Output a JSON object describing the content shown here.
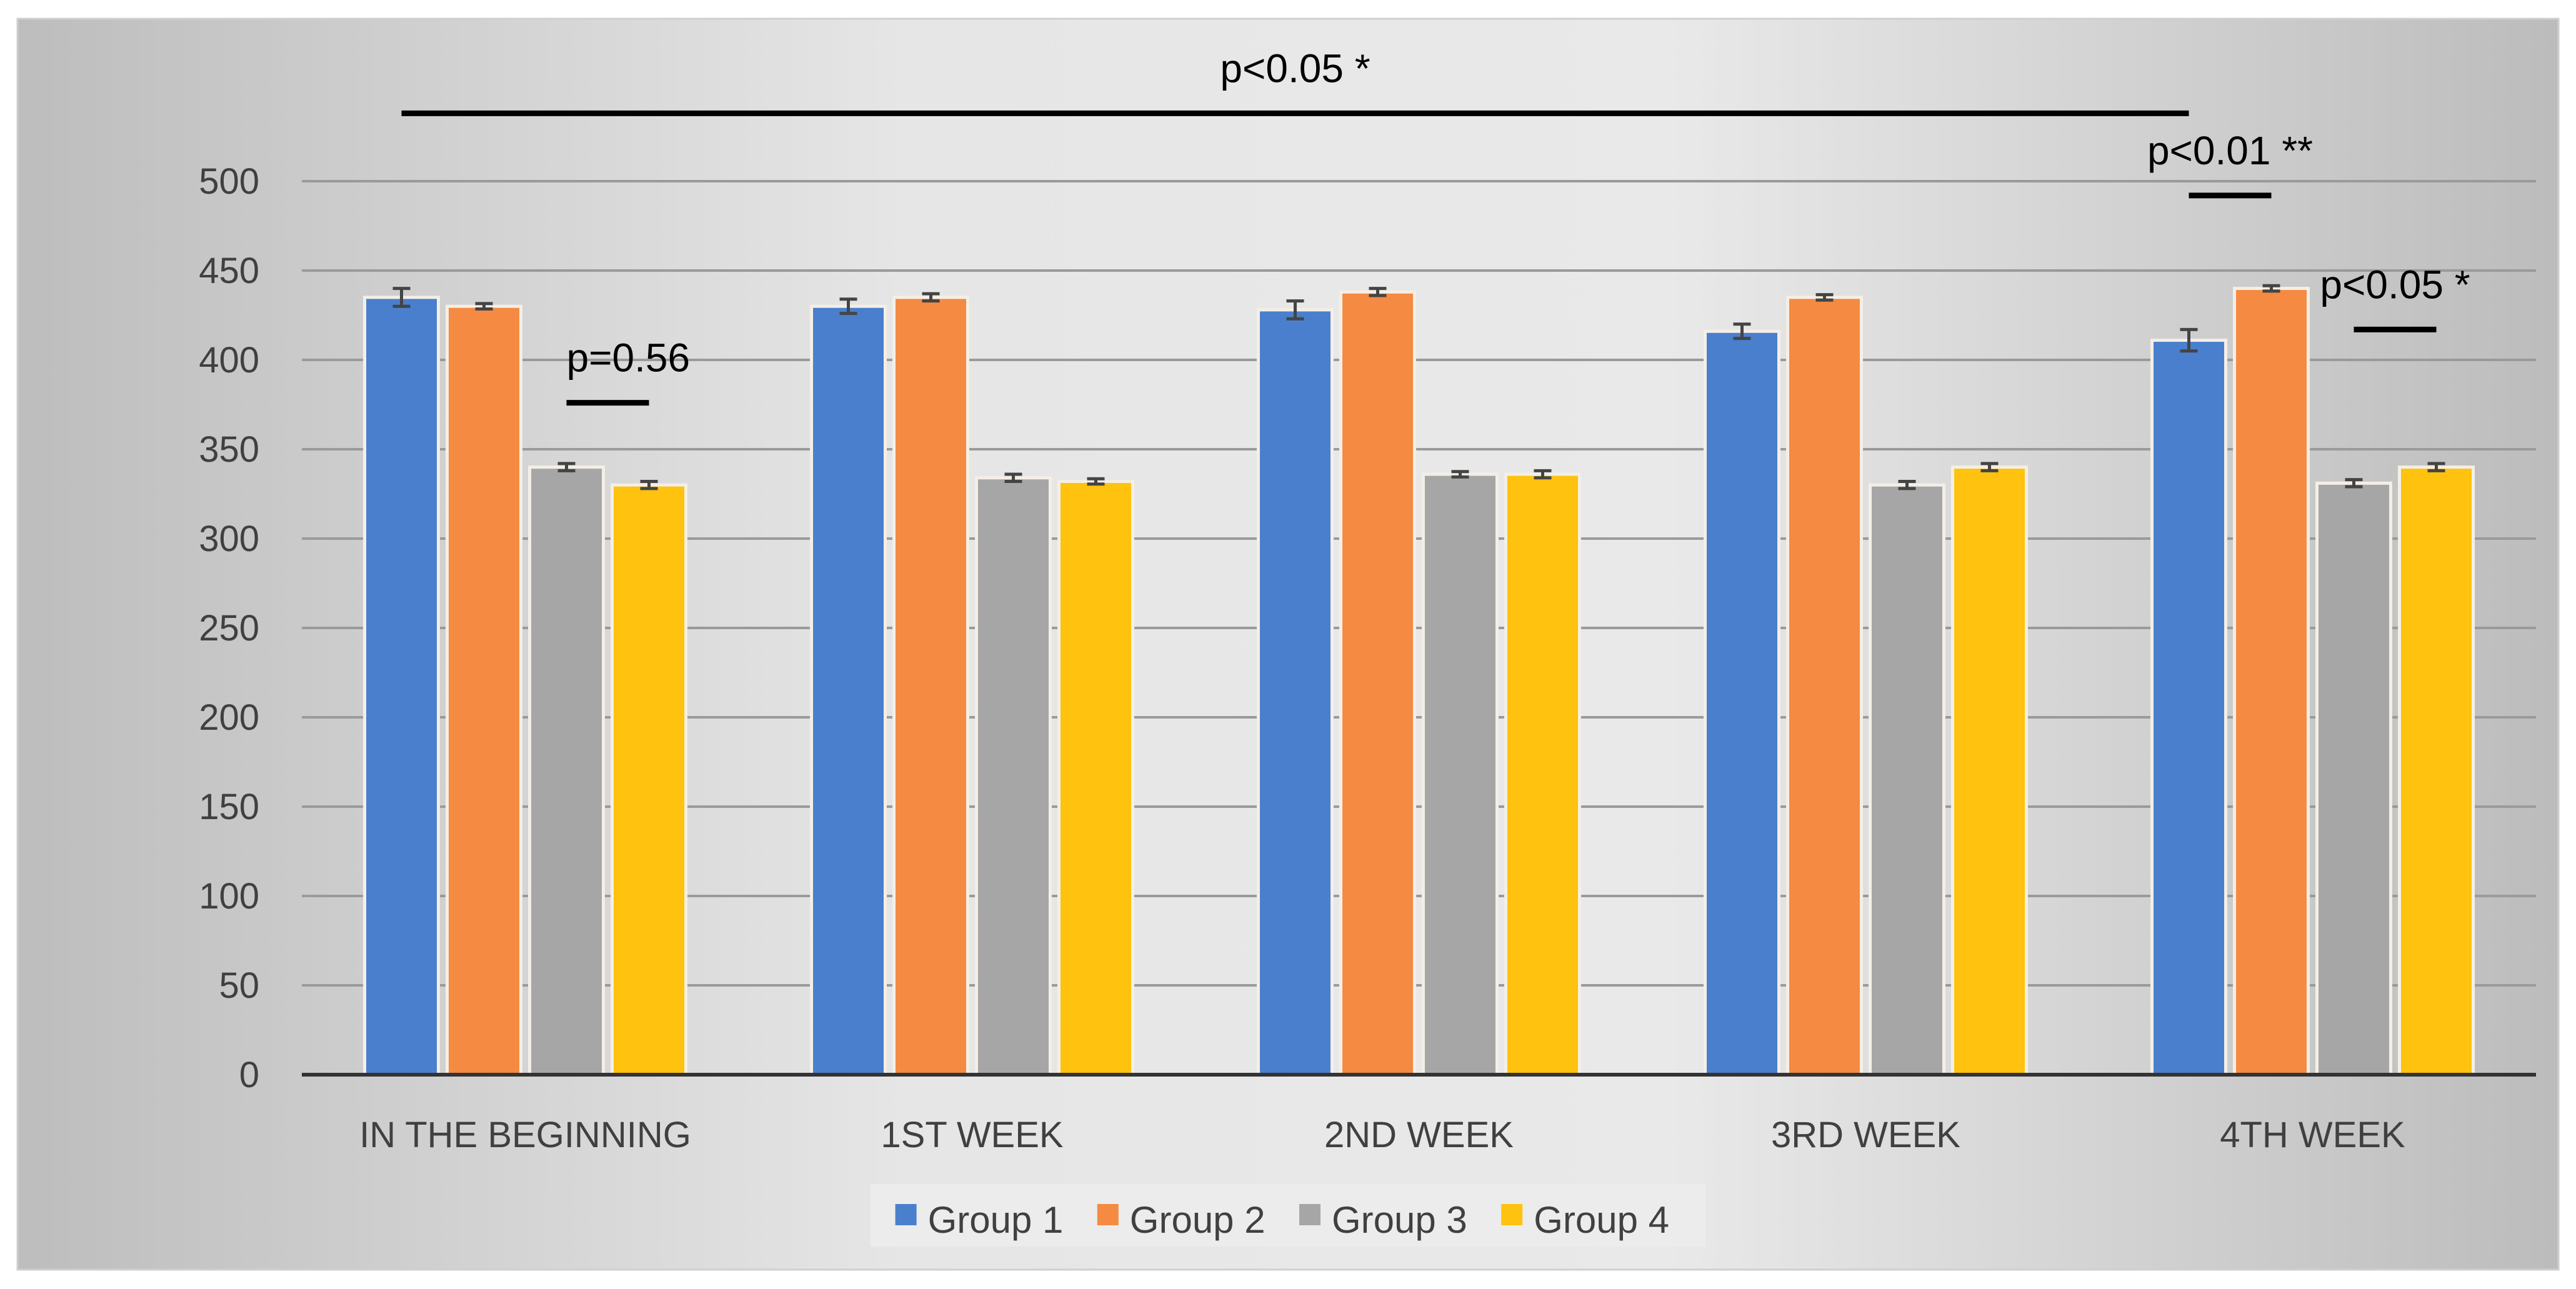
{
  "chart_data": {
    "type": "bar",
    "title": "",
    "xlabel": "",
    "ylabel": "",
    "ylim": [
      0,
      500
    ],
    "yticks": [
      0,
      50,
      100,
      150,
      200,
      250,
      300,
      350,
      400,
      450,
      500
    ],
    "ytick_labels": [
      "0",
      "50",
      "100",
      "150",
      "200",
      "250",
      "300",
      "350",
      "400",
      "450",
      "500"
    ],
    "grid": true,
    "legend_position": "bottom-center",
    "categories": [
      "IN THE BEGINNING",
      "1ST WEEK",
      "2ND WEEK",
      "3RD WEEK",
      "4TH WEEK"
    ],
    "series": [
      {
        "name": "Group 1",
        "color": "#4a7fcd",
        "values": [
          435,
          430,
          428,
          416,
          411
        ],
        "errors": [
          5,
          4,
          5,
          4,
          6
        ]
      },
      {
        "name": "Group 2",
        "color": "#f58a42",
        "values": [
          430,
          435,
          438,
          435,
          440
        ],
        "errors": [
          1.5,
          2,
          2,
          1.5,
          1.5
        ]
      },
      {
        "name": "Group 3",
        "color": "#a6a6a6",
        "values": [
          340,
          334,
          336,
          330,
          331
        ],
        "errors": [
          2,
          2,
          1.5,
          2,
          2
        ]
      },
      {
        "name": "Group 4",
        "color": "#ffc20e",
        "values": [
          330,
          332,
          336,
          340,
          340
        ],
        "errors": [
          2,
          1.5,
          2,
          2,
          2
        ]
      }
    ],
    "annotations": [
      {
        "text": "p<0.05 *",
        "value": 538,
        "from": {
          "cat": 0,
          "series": 0
        },
        "to": {
          "cat": 4,
          "series": 0
        },
        "label_at": "center"
      },
      {
        "text": "p=0.56",
        "value": 376,
        "from": {
          "cat": 0,
          "series": 2
        },
        "to": {
          "cat": 0,
          "series": 3
        },
        "label_at": "start"
      },
      {
        "text": "p<0.01 **",
        "value": 492,
        "from": {
          "cat": 4,
          "series": 0
        },
        "to": {
          "cat": 4,
          "series": 1
        },
        "label_at": "center"
      },
      {
        "text": "p<0.05 *",
        "value": 417,
        "from": {
          "cat": 4,
          "series": 2
        },
        "to": {
          "cat": 4,
          "series": 3
        },
        "label_at": "center"
      }
    ]
  }
}
